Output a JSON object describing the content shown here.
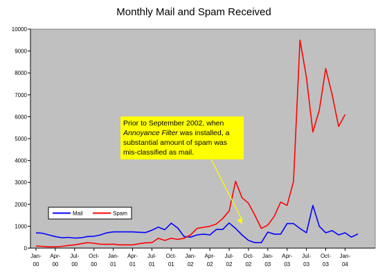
{
  "chart_data": {
    "type": "line",
    "title": "Monthly Mail and Spam Received",
    "xlabel": "",
    "ylabel": "",
    "ylim": [
      0,
      10000
    ],
    "yticks": [
      0,
      1000,
      2000,
      3000,
      4000,
      5000,
      6000,
      7000,
      8000,
      9000,
      10000
    ],
    "grid": "off",
    "plot_background": "#c0c0c0",
    "legend_placement": "lower-left",
    "x_tick_labels": [
      {
        "month_index": 0,
        "top": "Jan-",
        "bottom": "00"
      },
      {
        "month_index": 3,
        "top": "Apr-",
        "bottom": "00"
      },
      {
        "month_index": 6,
        "top": "Jul-",
        "bottom": "00"
      },
      {
        "month_index": 9,
        "top": "Oct-",
        "bottom": "00"
      },
      {
        "month_index": 12,
        "top": "Jan-",
        "bottom": "01"
      },
      {
        "month_index": 15,
        "top": "Apr-",
        "bottom": "01"
      },
      {
        "month_index": 18,
        "top": "Jul-",
        "bottom": "01"
      },
      {
        "month_index": 21,
        "top": "Oct-",
        "bottom": "01"
      },
      {
        "month_index": 24,
        "top": "Jan-",
        "bottom": "02"
      },
      {
        "month_index": 27,
        "top": "Apr-",
        "bottom": "02"
      },
      {
        "month_index": 30,
        "top": "Jul-",
        "bottom": "02"
      },
      {
        "month_index": 33,
        "top": "Oct-",
        "bottom": "02"
      },
      {
        "month_index": 36,
        "top": "Jan-",
        "bottom": "03"
      },
      {
        "month_index": 39,
        "top": "Apr-",
        "bottom": "03"
      },
      {
        "month_index": 42,
        "top": "Jul-",
        "bottom": "03"
      },
      {
        "month_index": 45,
        "top": "Oct-",
        "bottom": "03"
      },
      {
        "month_index": 48,
        "top": "Jan-",
        "bottom": "04"
      }
    ],
    "series": [
      {
        "name": "Mail",
        "color": "#0000ff",
        "values": [
          700,
          680,
          600,
          530,
          470,
          490,
          460,
          470,
          530,
          540,
          600,
          700,
          740,
          740,
          740,
          740,
          720,
          710,
          820,
          960,
          840,
          1140,
          920,
          530,
          500,
          600,
          640,
          600,
          850,
          850,
          1150,
          900,
          600,
          350,
          250,
          250,
          730,
          640,
          640,
          1120,
          1120,
          900,
          700,
          1950,
          1000,
          700,
          800,
          600,
          700,
          500,
          650
        ]
      },
      {
        "name": "Spam",
        "color": "#ff0000",
        "values": [
          100,
          80,
          60,
          60,
          80,
          120,
          150,
          200,
          250,
          220,
          180,
          170,
          180,
          150,
          150,
          150,
          200,
          240,
          250,
          450,
          350,
          450,
          400,
          450,
          600,
          900,
          950,
          1000,
          1100,
          1350,
          1700,
          3050,
          2300,
          2050,
          1500,
          900,
          1050,
          1450,
          2100,
          1950,
          3050,
          9500,
          7800,
          5300,
          6300,
          8200,
          7000,
          5550,
          6100
        ]
      }
    ],
    "annotation": {
      "lines": [
        [
          {
            "text": "Prior to September 2002, when",
            "italic": false
          }
        ],
        [
          {
            "text": "Annoyance Filter",
            "italic": true
          },
          {
            "text": " was installed, a",
            "italic": false
          }
        ],
        [
          {
            "text": "substantial amount of spam was",
            "italic": false
          }
        ],
        [
          {
            "text": "mis-classified as mail.",
            "italic": false
          }
        ]
      ],
      "box_color": "#ffff00",
      "arrow_target": {
        "month_index": 32,
        "value": 1100
      }
    }
  }
}
